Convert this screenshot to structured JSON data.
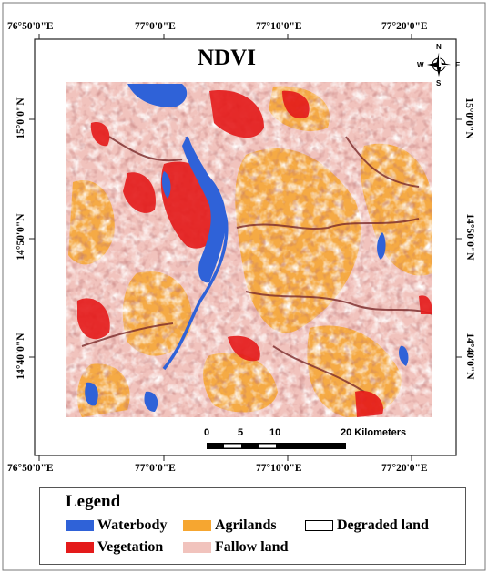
{
  "map": {
    "title": "NDVI",
    "top_lon_labels": [
      "76°50'0\"E",
      "77°0'0\"E",
      "77°10'0\"E",
      "77°20'0\"E"
    ],
    "bottom_lon_labels": [
      "76°50'0\"E",
      "77°0'0\"E",
      "77°10'0\"E",
      "77°20'0\"E"
    ],
    "left_lat_labels": [
      "15°0'0\"N",
      "14°50'0\"N",
      "14°40'0\"N"
    ],
    "right_lat_labels": [
      "15°0'0\"N",
      "14°50'0\"N",
      "14°40'0\"N"
    ],
    "north_arrow": {
      "icon": "compass-rose-icon",
      "n": "N",
      "s": "S",
      "e": "E",
      "w": "W"
    },
    "scale_bar": {
      "ticks": [
        "0",
        "5",
        "10",
        "20 Kilometers"
      ]
    },
    "colors": {
      "waterbody": "#2f62d8",
      "vegetation": "#e41a1a",
      "agrilands": "#f6a630",
      "fallow_land": "#f1c3bd",
      "degraded_land": "#ffffff",
      "drainage": "#7a2a2a"
    }
  },
  "legend": {
    "title": "Legend",
    "items": [
      {
        "label": "Waterbody",
        "color": "#2f62d8"
      },
      {
        "label": "Agrilands",
        "color": "#f6a630"
      },
      {
        "label": "Degraded land",
        "color": "#ffffff"
      },
      {
        "label": "Vegetation",
        "color": "#e41a1a"
      },
      {
        "label": "Fallow land",
        "color": "#f1c3bd"
      }
    ]
  }
}
